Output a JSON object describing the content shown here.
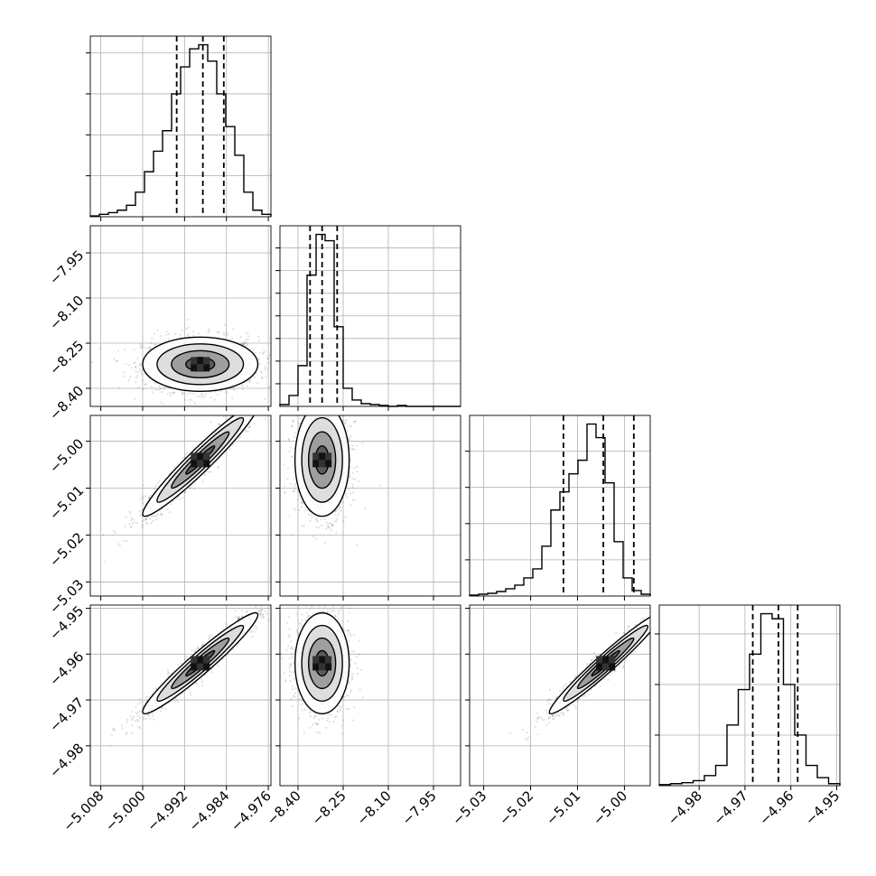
{
  "chart_data": {
    "type": "corner",
    "grid": true,
    "parameters": [
      {
        "ticks": [
          "−5.008",
          "−5.000",
          "−4.992",
          "−4.984",
          "−4.976"
        ],
        "tick_values": [
          -5.008,
          -5.0,
          -4.992,
          -4.984,
          -4.976
        ],
        "range": [
          -5.01,
          -4.9755
        ],
        "quantiles": [
          -4.9935,
          -4.9885,
          -4.9845
        ]
      },
      {
        "ticks": [
          "−8.40",
          "−8.25",
          "−8.10",
          "−7.95"
        ],
        "tick_values": [
          -8.4,
          -8.25,
          -8.1,
          -7.95
        ],
        "range": [
          -8.46,
          -7.86
        ],
        "quantiles": [
          -8.36,
          -8.32,
          -8.27
        ]
      },
      {
        "ticks": [
          "−5.03",
          "−5.02",
          "−5.01",
          "−5.00"
        ],
        "tick_values": [
          -5.03,
          -5.02,
          -5.01,
          -5.0
        ],
        "range": [
          -5.033,
          -4.9945
        ],
        "quantiles": [
          -5.013,
          -5.0045,
          -4.998
        ]
      },
      {
        "ticks": [
          "−4.98",
          "−4.97",
          "−4.96",
          "−4.95"
        ],
        "tick_values": [
          -4.98,
          -4.97,
          -4.96,
          -4.95
        ],
        "range": [
          -4.9887,
          -4.9493
        ],
        "quantiles": [
          -4.9683,
          -4.9627,
          -4.9585
        ]
      }
    ],
    "histograms": [
      {
        "counts": [
          1,
          3,
          5,
          8,
          14,
          30,
          55,
          80,
          105,
          150,
          183,
          205,
          210,
          190,
          150,
          110,
          75,
          30,
          8,
          3
        ]
      },
      {
        "counts": [
          2,
          12,
          45,
          145,
          190,
          183,
          88,
          20,
          7,
          3,
          2,
          1,
          0,
          1,
          0,
          0,
          0,
          0,
          0,
          0
        ]
      },
      {
        "counts": [
          1,
          2,
          3,
          5,
          8,
          12,
          20,
          30,
          55,
          95,
          115,
          135,
          150,
          190,
          175,
          125,
          60,
          20,
          6,
          2
        ]
      },
      {
        "counts": [
          1,
          2,
          3,
          5,
          10,
          20,
          60,
          95,
          130,
          170,
          165,
          100,
          50,
          20,
          8,
          2
        ]
      }
    ],
    "pairs": [
      {
        "x": 0,
        "y": 1,
        "center": [
          -4.989,
          -8.32
        ],
        "sd": [
          0.0055,
          0.045
        ],
        "rho": 0.0
      },
      {
        "x": 0,
        "y": 2,
        "center": [
          -4.989,
          -5.004
        ],
        "sd": [
          0.0055,
          0.006
        ],
        "rho": 0.96
      },
      {
        "x": 1,
        "y": 2,
        "center": [
          -8.32,
          -5.004
        ],
        "sd": [
          0.045,
          0.006
        ],
        "rho": 0.0
      },
      {
        "x": 0,
        "y": 3,
        "center": [
          -4.989,
          -4.962
        ],
        "sd": [
          0.0055,
          0.0055
        ],
        "rho": 0.96
      },
      {
        "x": 1,
        "y": 3,
        "center": [
          -8.32,
          -4.962
        ],
        "sd": [
          0.045,
          0.0055
        ],
        "rho": 0.0
      },
      {
        "x": 2,
        "y": 3,
        "center": [
          -5.004,
          -4.962
        ],
        "sd": [
          0.006,
          0.0055
        ],
        "rho": 0.97
      }
    ],
    "contour_levels_sigma": [
      0.5,
      1.0,
      1.5,
      2.0
    ]
  }
}
